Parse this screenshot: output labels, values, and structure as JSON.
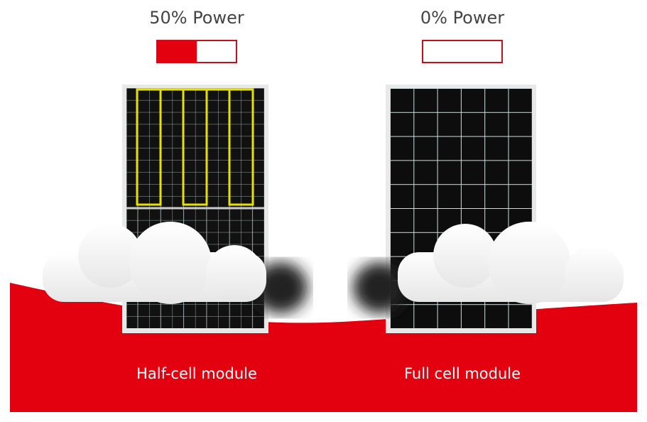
{
  "panels": [
    {
      "power_label": "50% Power",
      "power": 50,
      "caption": "Half-cell module"
    },
    {
      "power_label": "0% Power",
      "power": 0,
      "caption": "Full cell module"
    }
  ]
}
